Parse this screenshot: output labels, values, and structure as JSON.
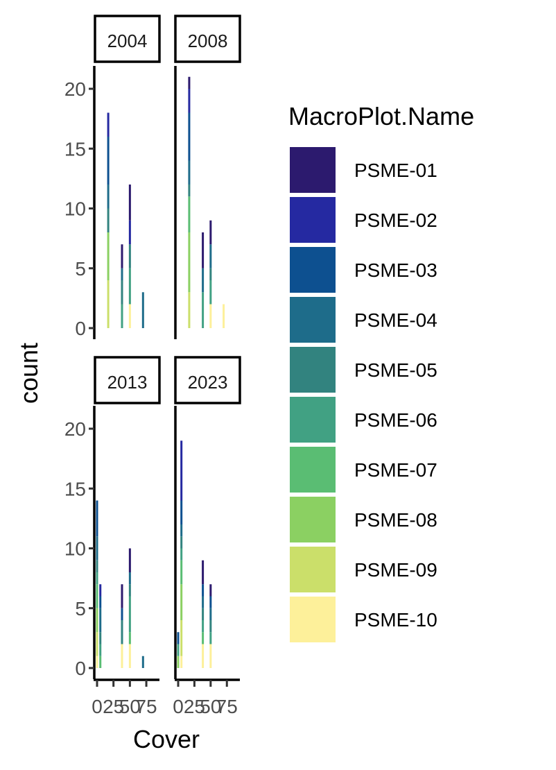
{
  "chart_data": {
    "type": "bar",
    "subtype": "stacked-histogram-facets",
    "xlabel": "Cover",
    "ylabel": "count",
    "ylim": [
      0,
      22
    ],
    "y_ticks": [
      0,
      5,
      10,
      15,
      20
    ],
    "xlim": [
      0,
      95
    ],
    "x_ticks": [
      0,
      25,
      50,
      75
    ],
    "x_tick_labels": [
      "0",
      "25",
      "50",
      "75"
    ],
    "bin_centers": [
      0,
      5,
      17,
      38,
      50,
      60,
      70,
      85
    ],
    "series": [
      {
        "name": "PSME-01",
        "color": "#2C1A6E"
      },
      {
        "name": "PSME-02",
        "color": "#2529A1"
      },
      {
        "name": "PSME-03",
        "color": "#0D5090"
      },
      {
        "name": "PSME-04",
        "color": "#1E6C8A"
      },
      {
        "name": "PSME-05",
        "color": "#32837F"
      },
      {
        "name": "PSME-06",
        "color": "#41A183"
      },
      {
        "name": "PSME-07",
        "color": "#5ABD73"
      },
      {
        "name": "PSME-08",
        "color": "#8BD062"
      },
      {
        "name": "PSME-09",
        "color": "#CBDF6A"
      },
      {
        "name": "PSME-10",
        "color": "#FDF09A"
      }
    ],
    "legend": {
      "title": "MacroPlot.Name",
      "position": "right"
    },
    "grid": false,
    "facets": [
      {
        "label": "2004",
        "bars": [
          {
            "x": 17,
            "segments": [
              0,
              2,
              4,
              2,
              2,
              0,
              0,
              4,
              4,
              0
            ]
          },
          {
            "x": 38,
            "segments": [
              2,
              0,
              0,
              1,
              2,
              2,
              0,
              0,
              0,
              0
            ]
          },
          {
            "x": 50,
            "segments": [
              3,
              2,
              0,
              0,
              2,
              3,
              0,
              0,
              0,
              2
            ]
          },
          {
            "x": 70,
            "segments": [
              0,
              0,
              0,
              3,
              0,
              0,
              0,
              0,
              0,
              0
            ]
          }
        ]
      },
      {
        "label": "2008",
        "bars": [
          {
            "x": 17,
            "segments": [
              1,
              2,
              4,
              2,
              1,
              0,
              3,
              5,
              3,
              0
            ]
          },
          {
            "x": 38,
            "segments": [
              3,
              0,
              0,
              2,
              0,
              3,
              0,
              0,
              0,
              0
            ]
          },
          {
            "x": 50,
            "segments": [
              2,
              0,
              0,
              2,
              1,
              2,
              0,
              0,
              0,
              2
            ]
          },
          {
            "x": 70,
            "segments": [
              0,
              0,
              0,
              0,
              0,
              0,
              0,
              0,
              0,
              2
            ]
          }
        ]
      },
      {
        "label": "2013",
        "bars": [
          {
            "x": 0,
            "segments": [
              0,
              0,
              3,
              2,
              1,
              1,
              2,
              2,
              2,
              1
            ]
          },
          {
            "x": 5,
            "segments": [
              0,
              1,
              1,
              2,
              1,
              1,
              1,
              0,
              0,
              0
            ]
          },
          {
            "x": 38,
            "segments": [
              2,
              0,
              1,
              0,
              2,
              0,
              0,
              0,
              0,
              2
            ]
          },
          {
            "x": 50,
            "segments": [
              2,
              0,
              0,
              1,
              1,
              3,
              1,
              0,
              0,
              2
            ]
          },
          {
            "x": 70,
            "segments": [
              0,
              0,
              0,
              1,
              0,
              0,
              0,
              0,
              0,
              0
            ]
          }
        ]
      },
      {
        "label": "2023",
        "bars": [
          {
            "x": 0,
            "segments": [
              0,
              0,
              1,
              0,
              0,
              1,
              0,
              1,
              0,
              0
            ]
          },
          {
            "x": 5,
            "segments": [
              0,
              5,
              2,
              1,
              1,
              1,
              2,
              3,
              3,
              1
            ]
          },
          {
            "x": 38,
            "segments": [
              2,
              0,
              1,
              1,
              1,
              1,
              1,
              0,
              0,
              2
            ]
          },
          {
            "x": 50,
            "segments": [
              1,
              0,
              1,
              1,
              1,
              1,
              0,
              0,
              0,
              2
            ]
          }
        ]
      }
    ]
  }
}
